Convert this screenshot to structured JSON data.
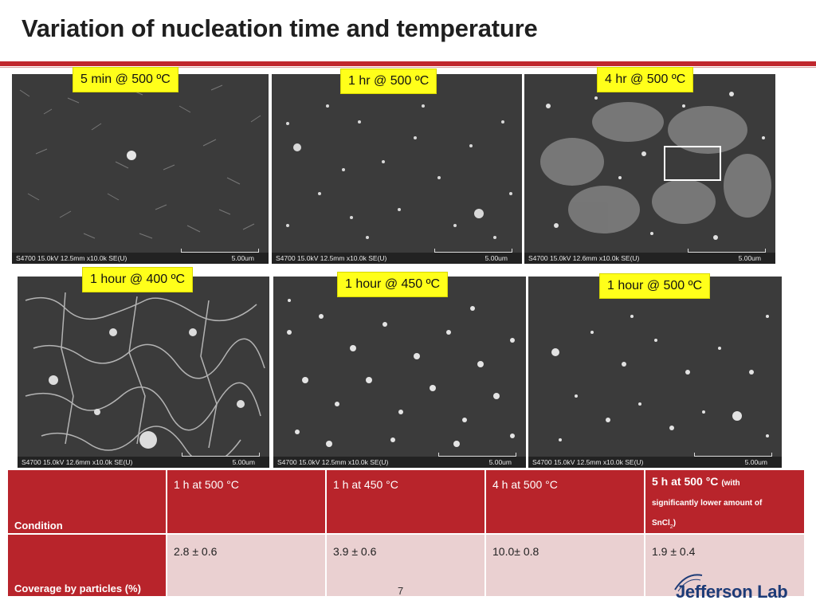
{
  "slide": {
    "title": "Variation of nucleation time and temperature",
    "page_number": "7",
    "logo_text": "Jefferson Lab",
    "accent_color": "#c0272d"
  },
  "micrographs": [
    {
      "label": "5 min @ 500 ºC",
      "info": "S4700 15.0kV 12.5mm x10.0k SE(U)",
      "scale": "5.00um"
    },
    {
      "label": "1 hr @ 500 ºC",
      "info": "S4700 15.0kV 12.5mm x10.0k SE(U)",
      "scale": "5.00um"
    },
    {
      "label": "4 hr @ 500 ºC",
      "info": "S4700 15.0kV 12.6mm x10.0k SE(U)",
      "scale": "5.00um"
    },
    {
      "label": "1 hour @ 400 ºC",
      "info": "S4700 15.0kV 12.6mm x10.0k SE(U)",
      "scale": "5.00um"
    },
    {
      "label": "1 hour @ 450 ºC",
      "info": "S4700 15.0kV 12.5mm x10.0k SE(U)",
      "scale": "5.00um"
    },
    {
      "label": "1 hour @ 500 ºC",
      "info": "S4700 15.0kV 12.5mm x10.0k SE(U)",
      "scale": "5.00um"
    }
  ],
  "table": {
    "header_label": "Condition",
    "columns": [
      "1 h at 500 °C",
      "1 h at 450 °C",
      "4 h at 500 °C"
    ],
    "col5_main": "5 h at 500 °C",
    "col5_note_a": "(with",
    "col5_note_b": "significantly lower amount of",
    "col5_note_c": "SnCl",
    "col5_note_sub": "2",
    "col5_note_d": ")",
    "row_label": "Coverage by particles (%)",
    "values": [
      "2.8 ± 0.6",
      "3.9 ± 0.6",
      "10.0± 0.8",
      "1.9 ± 0.4"
    ]
  }
}
